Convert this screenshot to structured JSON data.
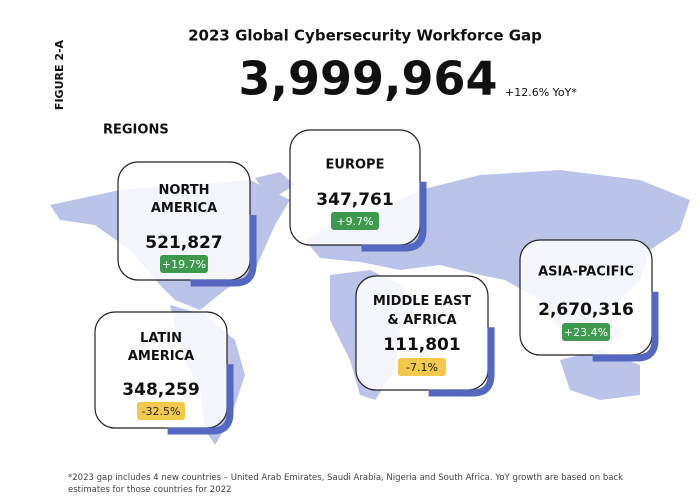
{
  "figure_label": "FIGURE 2-A",
  "title": "2023 Global Cybersecurity Workforce Gap",
  "total": "3,999,964",
  "total_change": "+12.6% YoY*",
  "regions_label": "REGIONS",
  "regions": [
    {
      "name": "NORTH AMERICA",
      "value": "521,827",
      "change": "+19.7%"
    },
    {
      "name": "EUROPE",
      "value": "347,761",
      "change": "+9.7%"
    },
    {
      "name": "MIDDLE EAST & AFRICA",
      "value": "111,801",
      "change": "-7.1%"
    },
    {
      "name": "ASIA-PACIFIC",
      "value": "2,670,316",
      "change": "+23.4%"
    },
    {
      "name": "LATIN AMERICA",
      "value": "348,259",
      "change": "-32.5%"
    }
  ],
  "footnote": "*2023 gap includes 4 new countries – United Arab Emirates, Saudi Arabia, Nigeria and South Africa. YoY growth are based on back estimates for those countries for 2022"
}
